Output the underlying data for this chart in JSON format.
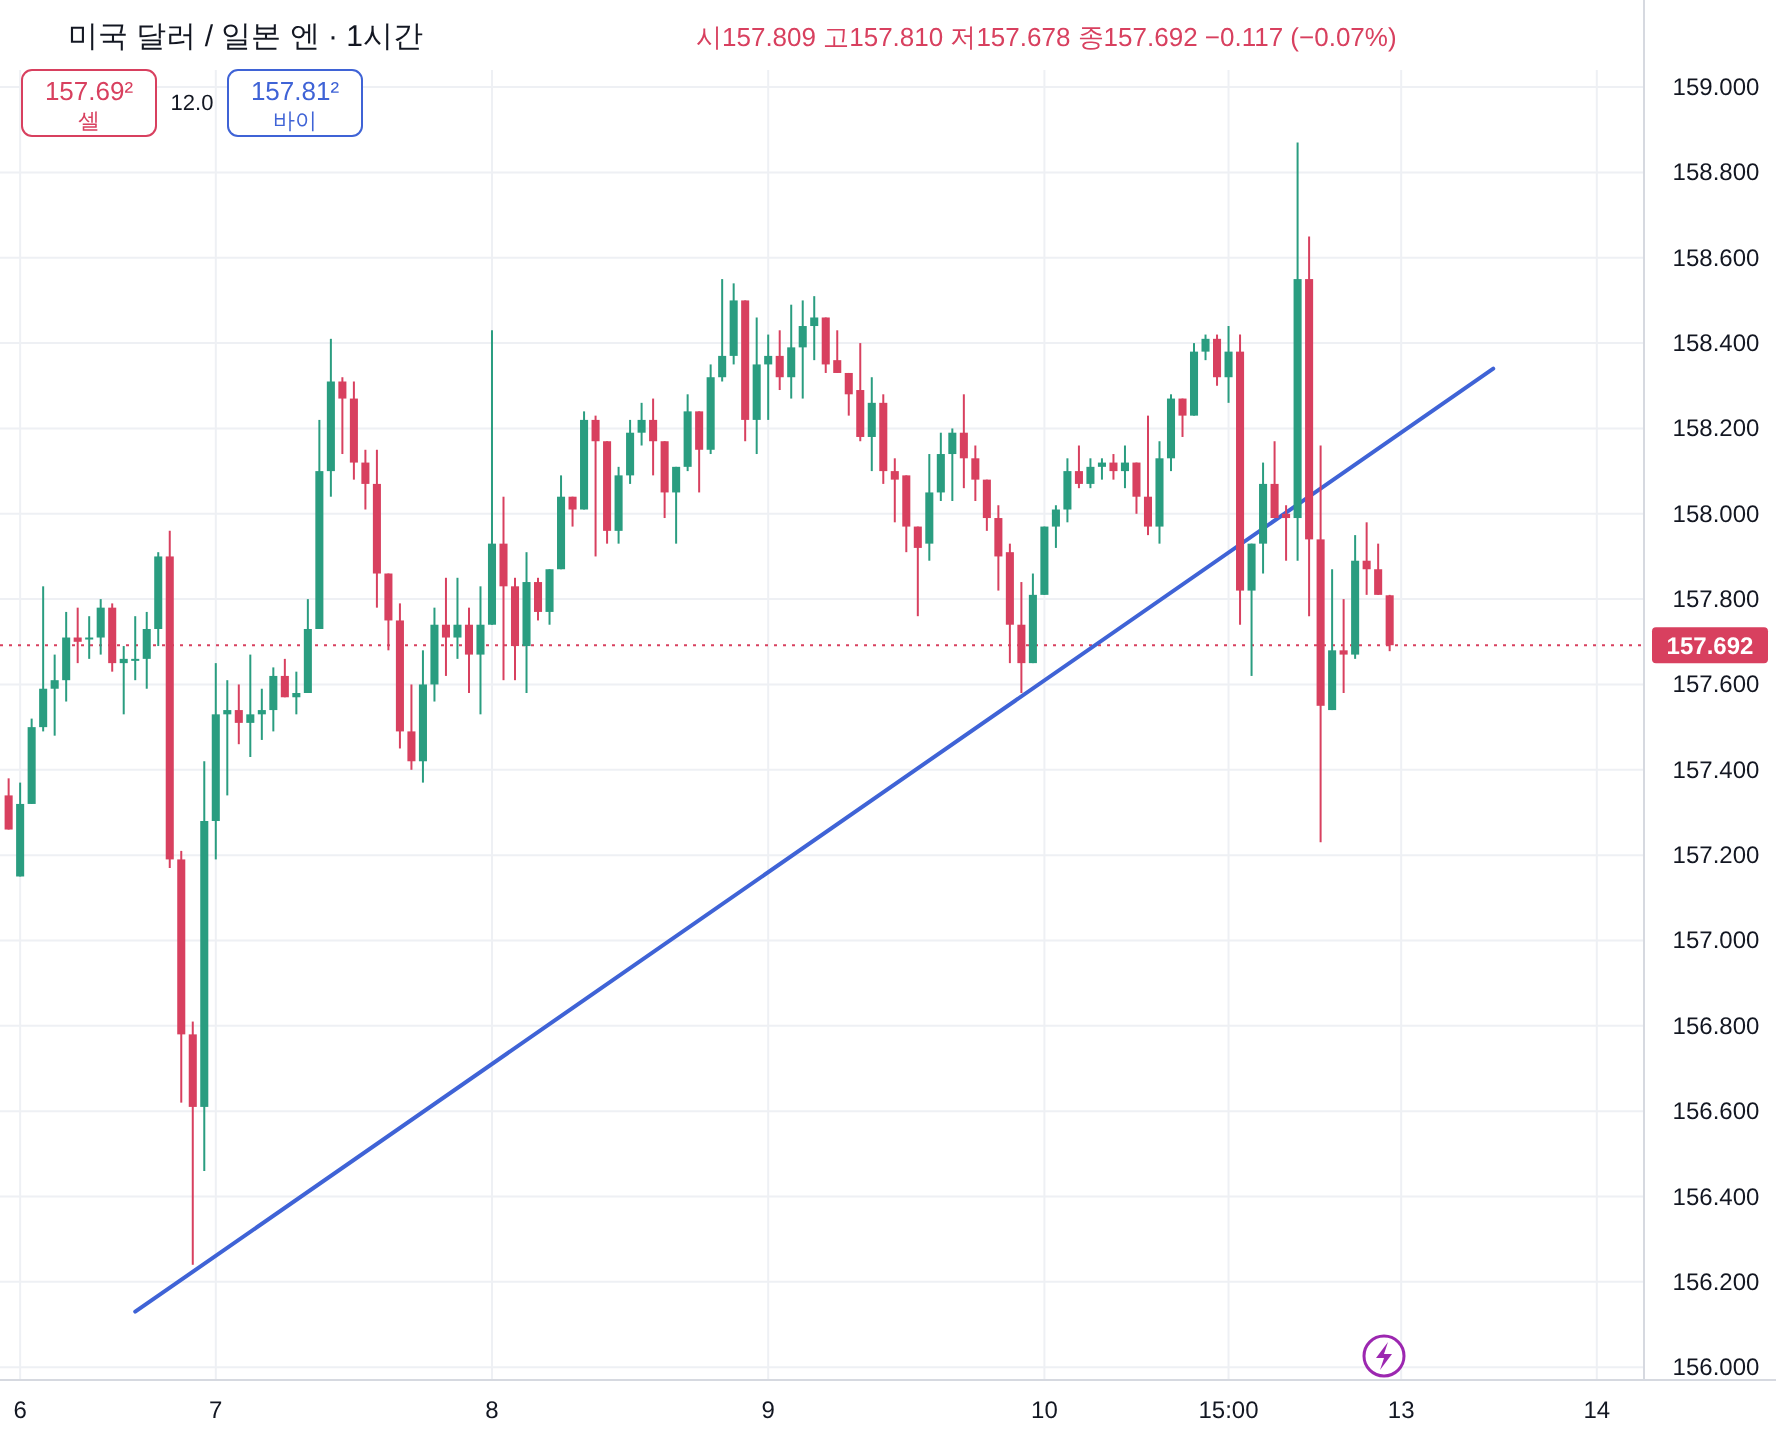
{
  "chart_data": {
    "type": "candlestick",
    "title": "미국 달러 / 일본 엔 · 1시간",
    "annotations": [
      "시157.809 고157.810 저157.678 종157.692 −0.117 (−0.07%)",
      "157.69²\n셀",
      "12.0",
      "157.81²\n바이"
    ],
    "categories": [
      null,
      "6",
      null,
      null,
      null,
      null,
      null,
      null,
      null,
      null,
      null,
      null,
      null,
      null,
      null,
      null,
      null,
      null,
      "7",
      null,
      null,
      null,
      null,
      null,
      null,
      null,
      null,
      null,
      null,
      null,
      null,
      null,
      null,
      null,
      null,
      null,
      null,
      null,
      null,
      null,
      null,
      null,
      "8",
      null,
      null,
      null,
      null,
      null,
      null,
      null,
      null,
      null,
      null,
      null,
      null,
      null,
      null,
      null,
      null,
      null,
      null,
      null,
      null,
      null,
      null,
      null,
      "9",
      null,
      null,
      null,
      null,
      null,
      null,
      null,
      null,
      null,
      null,
      null,
      null,
      null,
      null,
      null,
      null,
      null,
      null,
      null,
      null,
      null,
      null,
      null,
      "10",
      null,
      null,
      null,
      null,
      null,
      null,
      null,
      null,
      null,
      null,
      null,
      null,
      null,
      null,
      null,
      "15:00",
      null,
      null,
      null,
      null,
      null,
      null,
      null,
      null,
      null,
      null,
      null,
      null,
      null,
      null,
      "13",
      null,
      null,
      null,
      null,
      null,
      null,
      null,
      null,
      null,
      null,
      null,
      null,
      null,
      null,
      null,
      null,
      "14",
      null,
      null,
      null,
      null
    ],
    "ohlc": [
      [
        157.34,
        157.38,
        157.26,
        157.26
      ],
      [
        157.15,
        157.37,
        157.15,
        157.32
      ],
      [
        157.32,
        157.52,
        157.32,
        157.5
      ],
      [
        157.5,
        157.83,
        157.49,
        157.59
      ],
      [
        157.59,
        157.67,
        157.48,
        157.61
      ],
      [
        157.61,
        157.77,
        157.56,
        157.71
      ],
      [
        157.71,
        157.78,
        157.65,
        157.7
      ],
      [
        157.71,
        157.76,
        157.66,
        157.71
      ],
      [
        157.71,
        157.8,
        157.67,
        157.78
      ],
      [
        157.78,
        157.79,
        157.63,
        157.65
      ],
      [
        157.65,
        157.69,
        157.53,
        157.66
      ],
      [
        157.66,
        157.76,
        157.61,
        157.66
      ],
      [
        157.66,
        157.77,
        157.59,
        157.73
      ],
      [
        157.73,
        157.91,
        157.69,
        157.9
      ],
      [
        157.9,
        157.96,
        157.17,
        157.19
      ],
      [
        157.19,
        157.21,
        156.62,
        156.78
      ],
      [
        156.78,
        156.81,
        156.24,
        156.61
      ],
      [
        156.61,
        157.42,
        156.46,
        157.28
      ],
      [
        157.28,
        157.65,
        157.19,
        157.53
      ],
      [
        157.53,
        157.61,
        157.34,
        157.54
      ],
      [
        157.54,
        157.6,
        157.46,
        157.51
      ],
      [
        157.51,
        157.67,
        157.43,
        157.53
      ],
      [
        157.53,
        157.59,
        157.47,
        157.54
      ],
      [
        157.54,
        157.64,
        157.49,
        157.62
      ],
      [
        157.62,
        157.66,
        157.57,
        157.57
      ],
      [
        157.57,
        157.63,
        157.53,
        157.58
      ],
      [
        157.58,
        157.8,
        157.58,
        157.73
      ],
      [
        157.73,
        158.22,
        157.73,
        158.1
      ],
      [
        158.1,
        158.41,
        158.04,
        158.31
      ],
      [
        158.31,
        158.32,
        158.14,
        158.27
      ],
      [
        158.27,
        158.31,
        158.08,
        158.12
      ],
      [
        158.12,
        158.15,
        158.01,
        158.07
      ],
      [
        158.07,
        158.15,
        157.78,
        157.86
      ],
      [
        157.86,
        157.86,
        157.68,
        157.75
      ],
      [
        157.75,
        157.79,
        157.45,
        157.49
      ],
      [
        157.49,
        157.6,
        157.4,
        157.42
      ],
      [
        157.42,
        157.68,
        157.37,
        157.6
      ],
      [
        157.6,
        157.78,
        157.56,
        157.74
      ],
      [
        157.74,
        157.85,
        157.62,
        157.71
      ],
      [
        157.71,
        157.85,
        157.66,
        157.74
      ],
      [
        157.74,
        157.78,
        157.58,
        157.67
      ],
      [
        157.67,
        157.83,
        157.53,
        157.74
      ],
      [
        157.74,
        158.43,
        157.74,
        157.93
      ],
      [
        157.93,
        158.04,
        157.61,
        157.83
      ],
      [
        157.83,
        157.85,
        157.61,
        157.69
      ],
      [
        157.69,
        157.91,
        157.58,
        157.84
      ],
      [
        157.84,
        157.85,
        157.75,
        157.77
      ],
      [
        157.77,
        157.87,
        157.74,
        157.87
      ],
      [
        157.87,
        158.09,
        157.87,
        158.04
      ],
      [
        158.04,
        158.04,
        157.97,
        158.01
      ],
      [
        158.01,
        158.24,
        158.01,
        158.22
      ],
      [
        158.22,
        158.23,
        157.9,
        158.17
      ],
      [
        158.17,
        158.17,
        157.93,
        157.96
      ],
      [
        157.96,
        158.11,
        157.93,
        158.09
      ],
      [
        158.09,
        158.22,
        158.07,
        158.19
      ],
      [
        158.19,
        158.26,
        158.16,
        158.22
      ],
      [
        158.22,
        158.27,
        158.09,
        158.17
      ],
      [
        158.17,
        158.17,
        157.99,
        158.05
      ],
      [
        158.05,
        158.11,
        157.93,
        158.11
      ],
      [
        158.11,
        158.28,
        158.1,
        158.24
      ],
      [
        158.24,
        158.24,
        158.05,
        158.15
      ],
      [
        158.15,
        158.35,
        158.14,
        158.32
      ],
      [
        158.32,
        158.55,
        158.31,
        158.37
      ],
      [
        158.37,
        158.54,
        158.35,
        158.5
      ],
      [
        158.5,
        158.5,
        158.17,
        158.22
      ],
      [
        158.22,
        158.46,
        158.14,
        158.35
      ],
      [
        158.35,
        158.42,
        158.22,
        158.37
      ],
      [
        158.37,
        158.43,
        158.29,
        158.32
      ],
      [
        158.32,
        158.49,
        158.27,
        158.39
      ],
      [
        158.39,
        158.5,
        158.27,
        158.44
      ],
      [
        158.44,
        158.51,
        158.36,
        158.46
      ],
      [
        158.46,
        158.46,
        158.33,
        158.35
      ],
      [
        158.36,
        158.43,
        158.33,
        158.33
      ],
      [
        158.33,
        158.33,
        158.23,
        158.28
      ],
      [
        158.29,
        158.4,
        158.17,
        158.18
      ],
      [
        158.18,
        158.32,
        158.1,
        158.26
      ],
      [
        158.26,
        158.28,
        158.07,
        158.1
      ],
      [
        158.1,
        158.13,
        157.98,
        158.08
      ],
      [
        158.09,
        158.09,
        157.91,
        157.97
      ],
      [
        157.97,
        157.97,
        157.76,
        157.92
      ],
      [
        157.93,
        158.14,
        157.89,
        158.05
      ],
      [
        158.05,
        158.19,
        158.03,
        158.14
      ],
      [
        158.14,
        158.2,
        158.03,
        158.19
      ],
      [
        158.19,
        158.28,
        158.06,
        158.13
      ],
      [
        158.13,
        158.16,
        158.03,
        158.08
      ],
      [
        158.08,
        158.08,
        157.96,
        157.99
      ],
      [
        157.99,
        158.02,
        157.82,
        157.9
      ],
      [
        157.91,
        157.93,
        157.65,
        157.74
      ],
      [
        157.74,
        157.84,
        157.58,
        157.65
      ],
      [
        157.65,
        157.86,
        157.65,
        157.81
      ],
      [
        157.81,
        157.97,
        157.81,
        157.97
      ],
      [
        157.97,
        158.02,
        157.92,
        158.01
      ],
      [
        158.01,
        158.13,
        157.98,
        158.1
      ],
      [
        158.1,
        158.16,
        158.06,
        158.07
      ],
      [
        158.07,
        158.13,
        158.06,
        158.11
      ],
      [
        158.11,
        158.13,
        158.08,
        158.12
      ],
      [
        158.12,
        158.14,
        158.08,
        158.1
      ],
      [
        158.1,
        158.16,
        158.06,
        158.12
      ],
      [
        158.12,
        158.12,
        158.0,
        158.04
      ],
      [
        158.04,
        158.23,
        157.95,
        157.97
      ],
      [
        157.97,
        158.17,
        157.93,
        158.13
      ],
      [
        158.13,
        158.28,
        158.1,
        158.27
      ],
      [
        158.27,
        158.27,
        158.18,
        158.23
      ],
      [
        158.23,
        158.4,
        158.23,
        158.38
      ],
      [
        158.38,
        158.42,
        158.36,
        158.41
      ],
      [
        158.41,
        158.42,
        158.3,
        158.32
      ],
      [
        158.32,
        158.44,
        158.26,
        158.38
      ],
      [
        158.38,
        158.42,
        157.74,
        157.82
      ],
      [
        157.82,
        157.93,
        157.62,
        157.93
      ],
      [
        157.93,
        158.12,
        157.86,
        158.07
      ],
      [
        158.07,
        158.17,
        157.99,
        157.99
      ],
      [
        158.0,
        158.02,
        157.89,
        157.99
      ],
      [
        157.99,
        158.87,
        157.89,
        158.55
      ],
      [
        158.55,
        158.65,
        157.76,
        157.94
      ],
      [
        157.94,
        158.16,
        157.23,
        157.55
      ],
      [
        157.54,
        157.87,
        157.54,
        157.68
      ],
      [
        157.68,
        157.8,
        157.58,
        157.67
      ],
      [
        157.67,
        157.95,
        157.66,
        157.89
      ],
      [
        157.89,
        157.98,
        157.81,
        157.87
      ],
      [
        157.87,
        157.93,
        157.81,
        157.81
      ],
      [
        157.809,
        157.81,
        157.678,
        157.692
      ],
      null,
      null,
      null,
      null,
      null,
      null,
      null,
      null,
      null,
      null,
      null,
      null,
      null,
      null,
      null,
      null,
      null,
      null,
      null,
      null,
      null,
      null
    ],
    "series": [
      {
        "type": "line",
        "color": "#3f63d6",
        "values": [
          null,
          null,
          null,
          null,
          null,
          null,
          null,
          null,
          null,
          null,
          null,
          156.13,
          null,
          null,
          null,
          null,
          null,
          null,
          null,
          null,
          null,
          null,
          null,
          null,
          null,
          null,
          null,
          null,
          null,
          null,
          null,
          null,
          null,
          null,
          null,
          null,
          null,
          null,
          null,
          null,
          null,
          null,
          null,
          null,
          null,
          null,
          null,
          null,
          null,
          null,
          null,
          null,
          null,
          null,
          null,
          null,
          null,
          null,
          null,
          null,
          null,
          null,
          null,
          null,
          null,
          null,
          null,
          null,
          null,
          null,
          null,
          null,
          null,
          null,
          null,
          null,
          null,
          null,
          null,
          null,
          null,
          null,
          null,
          null,
          null,
          null,
          null,
          null,
          null,
          null,
          null,
          null,
          null,
          null,
          null,
          null,
          null,
          null,
          null,
          null,
          null,
          null,
          null,
          null,
          null,
          null,
          null,
          null,
          null,
          null,
          null,
          null,
          null,
          null,
          null,
          null,
          null,
          null,
          null,
          null,
          null,
          null,
          null,
          null,
          null,
          null,
          null,
          null,
          null,
          158.34,
          null,
          null,
          null,
          null,
          null,
          null,
          null,
          null,
          null,
          null,
          null,
          null,
          null
        ]
      }
    ],
    "ylim": [
      155.97,
      159.04
    ],
    "yticks": [
      {
        "value": 156,
        "label": "156.000"
      },
      {
        "value": 156.2,
        "label": "156.200"
      },
      {
        "value": 156.4,
        "label": "156.400"
      },
      {
        "value": 156.6,
        "label": "156.600"
      },
      {
        "value": 156.8,
        "label": "156.800"
      },
      {
        "value": 157,
        "label": "157.000"
      },
      {
        "value": 157.2,
        "label": "157.200"
      },
      {
        "value": 157.4,
        "label": "157.400"
      },
      {
        "value": 157.6,
        "label": "157.600"
      },
      {
        "value": 157.8,
        "label": "157.800"
      },
      {
        "value": 158,
        "label": "158.000"
      },
      {
        "value": 158.2,
        "label": "158.200"
      },
      {
        "value": 158.4,
        "label": "158.400"
      },
      {
        "value": 158.6,
        "label": "158.600"
      },
      {
        "value": 158.8,
        "label": "158.800"
      },
      {
        "value": 159,
        "label": "159.000"
      }
    ],
    "ref_lines": [
      {
        "axis": "y",
        "value": 157.692,
        "label": "157.692",
        "color": "#d8405f",
        "line_style": "dotted"
      }
    ],
    "grid": true
  }
}
